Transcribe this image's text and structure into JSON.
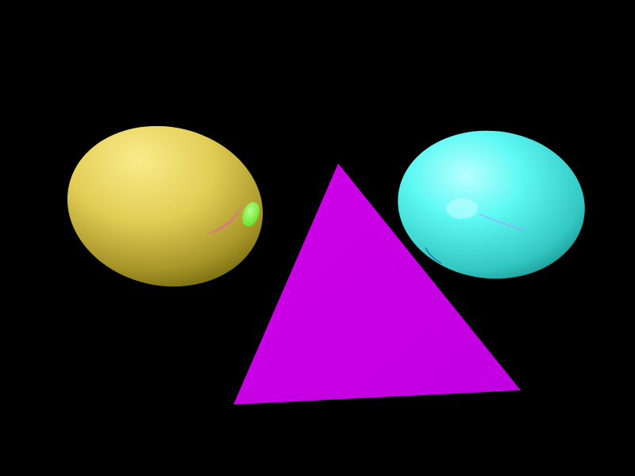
{
  "scene": {
    "background": "#000000",
    "objects": [
      {
        "name": "yellow-ellipsoid",
        "kind": "ellipsoid",
        "color": "#e8d35a",
        "highlight": "#f9ec8a",
        "shadow": "#7a7010"
      },
      {
        "name": "cyan-ellipsoid",
        "kind": "ellipsoid",
        "color": "#4ff5f0",
        "highlight": "#c0ffff",
        "shadow": "#0d7d7a"
      },
      {
        "name": "magenta-triangle",
        "kind": "triangle",
        "color": "#cc00e6",
        "highlight": "#d90ff2",
        "shadow": "#b800d6"
      },
      {
        "name": "green-reflection",
        "kind": "specular-spot",
        "color": "#7cff3a"
      },
      {
        "name": "pink-reflection",
        "kind": "reflection-streak",
        "color": "#d97a7a"
      }
    ]
  }
}
